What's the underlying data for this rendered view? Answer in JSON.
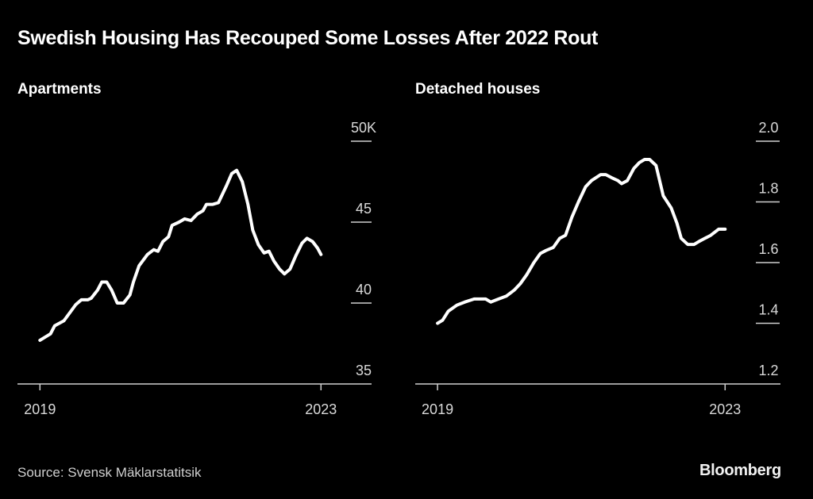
{
  "title": "Swedish Housing Has Recouped Some Losses After 2022 Rout",
  "source": "Source: Svensk Mäklarstatitsik",
  "brand": "Bloomberg",
  "chart_data": [
    {
      "type": "line",
      "title": "Apartments",
      "xlabel": "",
      "ylabel": "",
      "x_ticks": [
        2019,
        2023
      ],
      "x_tick_labels": [
        "2019",
        "2023"
      ],
      "xlim": [
        2018.68,
        2023.72
      ],
      "y_ticks": [
        35,
        40,
        45,
        50
      ],
      "y_tick_labels": [
        "35",
        "40",
        "45",
        "50K"
      ],
      "ylim": [
        35,
        50
      ],
      "y_axis_position": "right",
      "grid": false,
      "series": [
        {
          "name": "Apartments",
          "color": "#ffffff",
          "x": [
            2019.0,
            2019.15,
            2019.21,
            2019.34,
            2019.51,
            2019.59,
            2019.68,
            2019.73,
            2019.82,
            2019.88,
            2019.95,
            2020.02,
            2020.1,
            2020.19,
            2020.28,
            2020.33,
            2020.41,
            2020.53,
            2020.62,
            2020.68,
            2020.75,
            2020.83,
            2020.88,
            2020.98,
            2021.06,
            2021.15,
            2021.24,
            2021.32,
            2021.37,
            2021.46,
            2021.54,
            2021.66,
            2021.73,
            2021.8,
            2021.88,
            2021.96,
            2022.03,
            2022.11,
            2022.19,
            2022.26,
            2022.33,
            2022.41,
            2022.48,
            2022.56,
            2022.64,
            2022.73,
            2022.8,
            2022.88,
            2022.95,
            2023.0
          ],
          "values": [
            37.7,
            38.1,
            38.6,
            38.9,
            39.9,
            40.2,
            40.2,
            40.3,
            40.8,
            41.3,
            41.3,
            40.8,
            40.0,
            40.0,
            40.5,
            41.3,
            42.3,
            43.0,
            43.3,
            43.2,
            43.8,
            44.1,
            44.8,
            45.0,
            45.2,
            45.1,
            45.5,
            45.7,
            46.1,
            46.1,
            46.2,
            47.3,
            48.0,
            48.2,
            47.5,
            46.1,
            44.5,
            43.6,
            43.1,
            43.2,
            42.6,
            42.1,
            41.8,
            42.1,
            42.9,
            43.7,
            44.0,
            43.8,
            43.4,
            43.0
          ]
        }
      ]
    },
    {
      "type": "line",
      "title": "Detached houses",
      "xlabel": "",
      "ylabel": "",
      "x_ticks": [
        2019,
        2023
      ],
      "x_tick_labels": [
        "2019",
        "2023"
      ],
      "xlim": [
        2018.69,
        2023.77
      ],
      "y_ticks": [
        1.2,
        1.4,
        1.6,
        1.8,
        2.0
      ],
      "y_tick_labels": [
        "1.2",
        "1.4",
        "1.6",
        "1.8",
        "2.0"
      ],
      "ylim": [
        1.2,
        2.0
      ],
      "y_axis_position": "right",
      "grid": false,
      "series": [
        {
          "name": "Detached houses",
          "color": "#ffffff",
          "x": [
            2019.0,
            2019.07,
            2019.15,
            2019.27,
            2019.38,
            2019.51,
            2019.6,
            2019.67,
            2019.74,
            2019.85,
            2019.96,
            2020.07,
            2020.15,
            2020.24,
            2020.34,
            2020.43,
            2020.51,
            2020.61,
            2020.7,
            2020.78,
            2020.87,
            2020.96,
            2021.06,
            2021.14,
            2021.27,
            2021.34,
            2021.42,
            2021.51,
            2021.56,
            2021.64,
            2021.73,
            2021.81,
            2021.88,
            2021.95,
            2022.04,
            2022.14,
            2022.25,
            2022.33,
            2022.39,
            2022.48,
            2022.57,
            2022.64,
            2022.72,
            2022.8,
            2022.91,
            2023.0
          ],
          "values": [
            1.4,
            1.41,
            1.44,
            1.46,
            1.47,
            1.48,
            1.48,
            1.48,
            1.47,
            1.48,
            1.49,
            1.51,
            1.53,
            1.56,
            1.6,
            1.63,
            1.64,
            1.65,
            1.68,
            1.69,
            1.75,
            1.8,
            1.85,
            1.87,
            1.89,
            1.89,
            1.88,
            1.87,
            1.86,
            1.87,
            1.91,
            1.93,
            1.94,
            1.94,
            1.92,
            1.82,
            1.78,
            1.73,
            1.68,
            1.66,
            1.66,
            1.67,
            1.68,
            1.69,
            1.71,
            1.71
          ]
        }
      ]
    }
  ]
}
